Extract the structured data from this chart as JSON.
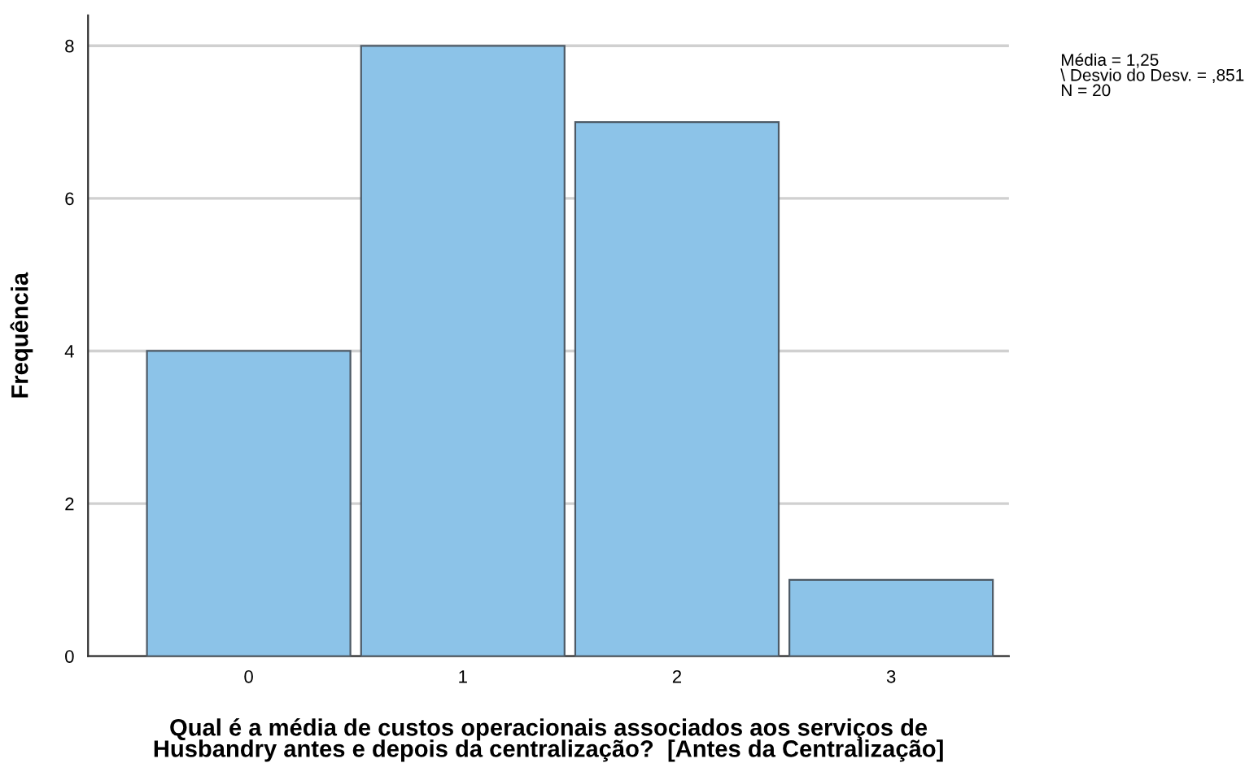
{
  "chart_data": {
    "type": "histogram",
    "xlabel": "Qual é a média de custos operacionais associados aos serviços de\nHusbandry antes e depois da centralização?  [Antes da Centralização]",
    "ylabel": "Frequência",
    "bins": [
      -0.5,
      0.5,
      1.5,
      2.5,
      3.5
    ],
    "values": [
      4,
      8,
      7,
      1
    ],
    "color": "#8cc3e8",
    "xlim": [
      -0.75,
      3.55
    ],
    "xticks": [
      0,
      1,
      2,
      3
    ],
    "ylim": [
      0,
      8.4
    ],
    "yticks": [
      0,
      2,
      4,
      6,
      8
    ],
    "grid": "y",
    "annotations": [
      "Média = 1,25\n\\ Desvio do Desv. = ,851\nN = 20"
    ]
  }
}
